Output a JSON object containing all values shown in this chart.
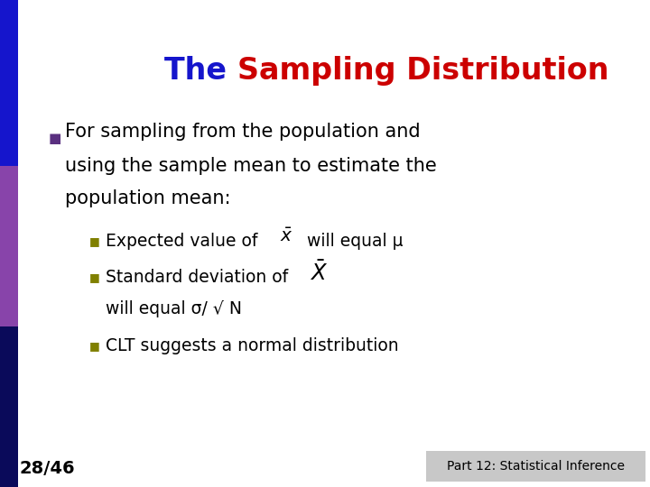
{
  "title_the": "The ",
  "title_rest": "Sampling Distribution",
  "title_the_color": "#1515CC",
  "title_rest_color": "#CC0000",
  "title_fontsize": 24,
  "title_fontweight": "bold",
  "bg_color": "#FFFFFF",
  "bar_top_color": "#1515CC",
  "bar_mid_color": "#8844AA",
  "bar_bot_color": "#0A0A5A",
  "bullet_color": "#808000",
  "bullet_char": "■",
  "main_bullet_color": "#5A3080",
  "body_fontsize": 15,
  "body_color": "#000000",
  "page_num": "28/46",
  "footer_right": "Part 12: Statistical Inference",
  "footer_fontsize": 10,
  "page_num_fontsize": 14,
  "page_num_fontweight": "bold"
}
